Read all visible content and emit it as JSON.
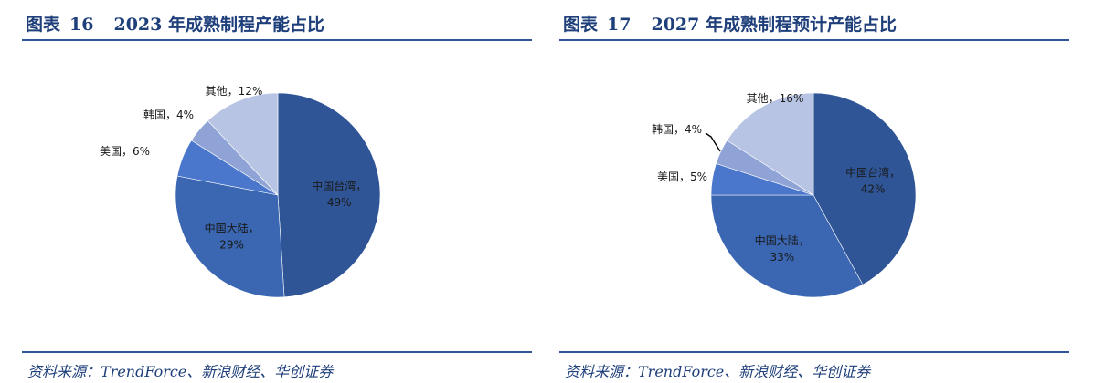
{
  "charts": [
    {
      "figure_label": "图表",
      "figure_number": "16",
      "title": "2023 年成熟制程产能占比",
      "source": "资料来源：TrendForce、新浪财经、华创证券"
    },
    {
      "figure_label": "图表",
      "figure_number": "17",
      "title": "2027 年成熟制程预计产能占比",
      "source": "资料来源：TrendForce、新浪财经、华创证券"
    }
  ],
  "chart_data": [
    {
      "type": "pie",
      "title": "2023 年成熟制程产能占比",
      "slices": [
        {
          "name": "中国台湾",
          "value": 49,
          "value_label": "49%",
          "color": "#2f5597"
        },
        {
          "name": "中国大陆",
          "value": 29,
          "value_label": "29%",
          "color": "#3a66b2"
        },
        {
          "name": "美国",
          "value": 6,
          "value_label": "6%",
          "color": "#4a77cc"
        },
        {
          "name": "韩国",
          "value": 4,
          "value_label": "4%",
          "color": "#8fa3d6"
        },
        {
          "name": "其他",
          "value": 12,
          "value_label": "12%",
          "color": "#b8c4e3"
        }
      ],
      "start": "12 o'clock",
      "direction": "clockwise",
      "legend": "none",
      "data_labels": "category and percentage"
    },
    {
      "type": "pie",
      "title": "2027 年成熟制程预计产能占比",
      "slices": [
        {
          "name": "中国台湾",
          "value": 42,
          "value_label": "42%",
          "color": "#2f5597"
        },
        {
          "name": "中国大陆",
          "value": 33,
          "value_label": "33%",
          "color": "#3a66b2"
        },
        {
          "name": "美国",
          "value": 5,
          "value_label": "5%",
          "color": "#4a77cc"
        },
        {
          "name": "韩国",
          "value": 4,
          "value_label": "4%",
          "color": "#8fa3d6"
        },
        {
          "name": "其他",
          "value": 16,
          "value_label": "16%",
          "color": "#b8c4e3"
        }
      ],
      "start": "12 o'clock",
      "direction": "clockwise",
      "legend": "none",
      "data_labels": "category and percentage"
    }
  ]
}
